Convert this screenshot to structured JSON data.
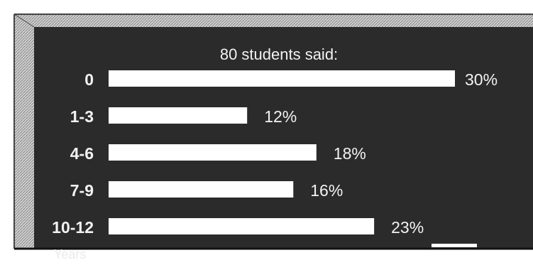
{
  "chart_data": {
    "type": "bar",
    "orientation": "horizontal",
    "title": "80 students said:",
    "xlabel": "",
    "ylabel": "Years",
    "categories": [
      "0",
      "1-3",
      "4-6",
      "7-9",
      "10-12"
    ],
    "values": [
      30,
      12,
      18,
      16,
      23
    ],
    "value_labels": [
      "30%",
      "12%",
      "18%",
      "16%",
      "23%"
    ],
    "unit": "%",
    "xlim": [
      0,
      30
    ],
    "grid": false,
    "legend": "none",
    "colors": {
      "board": "#2b2b2b",
      "bar": "#ffffff",
      "text": "#f2f2f2",
      "frame": "#bdbdbd"
    }
  }
}
